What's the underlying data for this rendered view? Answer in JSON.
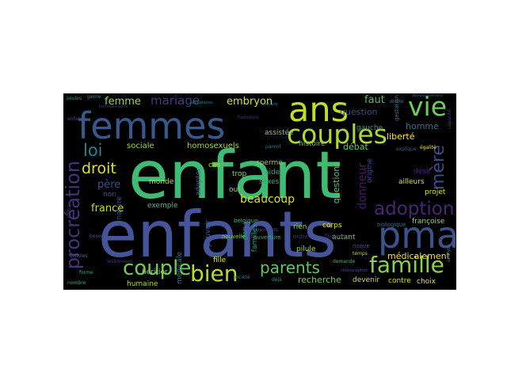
{
  "words": [
    {
      "text": "enfant",
      "color": "#3fbc73"
    },
    {
      "text": "enfants",
      "color": "#46559a"
    },
    {
      "text": "femmes",
      "color": "#38588c"
    },
    {
      "text": "ans",
      "color": "#bddf26"
    },
    {
      "text": "couples",
      "color": "#addc30"
    },
    {
      "text": "pma",
      "color": "#3b528b"
    },
    {
      "text": "vie",
      "color": "#6ccd5a"
    },
    {
      "text": "procréation",
      "color": "#46327e"
    },
    {
      "text": "couple",
      "color": "#6ece58"
    },
    {
      "text": "bien",
      "color": "#b5de2b"
    },
    {
      "text": "parents",
      "color": "#5ec962"
    },
    {
      "text": "famille",
      "color": "#86d549"
    },
    {
      "text": "adoption",
      "color": "#482576"
    },
    {
      "text": "mère",
      "color": "#3e4c8a"
    },
    {
      "text": "loi",
      "color": "#26828e"
    },
    {
      "text": "droit",
      "color": "#dde318"
    },
    {
      "text": "femme",
      "color": "#9bd93c"
    },
    {
      "text": "mariage",
      "color": "#443983"
    },
    {
      "text": "embryon",
      "color": "#d2e21b"
    },
    {
      "text": "france",
      "color": "#c2df23"
    },
    {
      "text": "beaucoup",
      "color": "#d8e219"
    },
    {
      "text": "père",
      "color": "#3d4e8a"
    },
    {
      "text": "donneur",
      "color": "#481a6c"
    },
    {
      "text": "homosexuels",
      "color": "#a0da39"
    },
    {
      "text": "question",
      "color": "#3f4889"
    },
    {
      "text": "faut",
      "color": "#4ac16d"
    },
    {
      "text": "homme",
      "color": "#2a768e"
    },
    {
      "text": "liberté",
      "color": "#fde725"
    },
    {
      "text": "débat",
      "color": "#5ec962"
    },
    {
      "text": "questions",
      "color": "#52c569"
    },
    {
      "text": "sociale",
      "color": "#95d840"
    },
    {
      "text": "recherche",
      "color": "#7ad151"
    },
    {
      "text": "médicalement",
      "color": "#f1e51d"
    },
    {
      "text": "devenir",
      "color": "#c8e020"
    },
    {
      "text": "contre",
      "color": "#d0e11c"
    },
    {
      "text": "choix",
      "color": "#e2e418"
    },
    {
      "text": "humaine",
      "color": "#a8db34"
    },
    {
      "text": "héritier",
      "color": "#89d548"
    },
    {
      "text": "fille",
      "color": "#e7e419"
    },
    {
      "text": "pilule",
      "color": "#9dd93b"
    },
    {
      "text": "autant",
      "color": "#6ece58"
    },
    {
      "text": "corps",
      "color": "#e5e419"
    },
    {
      "text": "rien",
      "color": "#90d743"
    },
    {
      "text": "projet",
      "color": "#dde318"
    },
    {
      "text": "françoise",
      "color": "#a5db36"
    },
    {
      "text": "désir",
      "color": "#482878"
    },
    {
      "text": "ailleurs",
      "color": "#d5e21a"
    },
    {
      "text": "histoire",
      "color": "#65cb5e"
    },
    {
      "text": "sexes",
      "color": "#27ad81"
    },
    {
      "text": "aide",
      "color": "#22a884"
    },
    {
      "text": "oui",
      "color": "#a2da37"
    },
    {
      "text": "trop",
      "color": "#90d743"
    },
    {
      "text": "cas",
      "color": "#b8de29"
    },
    {
      "text": "monde",
      "color": "#c0df25"
    },
    {
      "text": "exemple",
      "color": "#4ac16d"
    },
    {
      "text": "sperme",
      "color": "#86d549"
    },
    {
      "text": "assistée",
      "color": "#7ad151"
    },
    {
      "text": "non",
      "color": "#3b528b"
    },
    {
      "text": "adopter",
      "color": "#355f8d"
    },
    {
      "text": "pouvoir",
      "color": "#365c8d"
    },
    {
      "text": "médicale",
      "color": "#2c728e"
    },
    {
      "text": "don",
      "color": "#20928c"
    },
    {
      "text": "familles",
      "color": "#1f988b"
    },
    {
      "text": "origine",
      "color": "#3e4a89"
    },
    {
      "text": "nature",
      "color": "#39568c"
    },
    {
      "text": "gauche",
      "color": "#22a785"
    },
    {
      "text": "gestation",
      "color": "#2c728e"
    },
    {
      "text": "nouvelle",
      "color": "#7ad151"
    },
    {
      "text": "ordre",
      "color": "#46337f"
    },
    {
      "text": "risque",
      "color": "#3b528b"
    },
    {
      "text": "belgique",
      "color": "#35b779"
    },
    {
      "text": "filiation",
      "color": "#482475"
    },
    {
      "text": "biologique",
      "color": "#2e6f8e"
    },
    {
      "text": "déjà",
      "color": "#1f9e89"
    },
    {
      "text": "opposants",
      "color": "#3e4989"
    },
    {
      "text": "ouverture",
      "color": "#29af7f"
    },
    {
      "text": "nombre",
      "color": "#22a884"
    },
    {
      "text": "forme",
      "color": "#2ab07f"
    },
    {
      "text": "cellules",
      "color": "#31688e"
    },
    {
      "text": "droite",
      "color": "#26828e"
    },
    {
      "text": "égalité",
      "color": "#fde725"
    },
    {
      "text": "analyse",
      "color": "#2d708e"
    },
    {
      "text": "besoin",
      "color": "#3b528b"
    },
    {
      "text": "lesbiennes",
      "color": "#472d7b"
    },
    {
      "text": "naître",
      "color": "#414487"
    },
    {
      "text": "société",
      "color": "#2a788e"
    },
    {
      "text": "capacité",
      "color": "#453882"
    },
    {
      "text": "demande",
      "color": "#32b67a"
    },
    {
      "text": "seules",
      "color": "#1f9a8a"
    },
    {
      "text": "genre",
      "color": "#25848e"
    },
    {
      "text": "temps",
      "color": "#b5de2b"
    },
    {
      "text": "contraception",
      "color": "#3b528b"
    },
    {
      "text": "parent",
      "color": "#2a788e"
    },
    {
      "text": "développement",
      "color": "#38598c"
    },
    {
      "text": "explique",
      "color": "#32648e"
    },
    {
      "text": "hommes",
      "color": "#482878"
    },
    {
      "text": "célibataires",
      "color": "#26828e"
    },
    {
      "text": "homosexualité",
      "color": "#443983"
    },
    {
      "text": "manière",
      "color": "#2d708e"
    },
    {
      "text": "enfance",
      "color": "#3b528b"
    }
  ]
}
